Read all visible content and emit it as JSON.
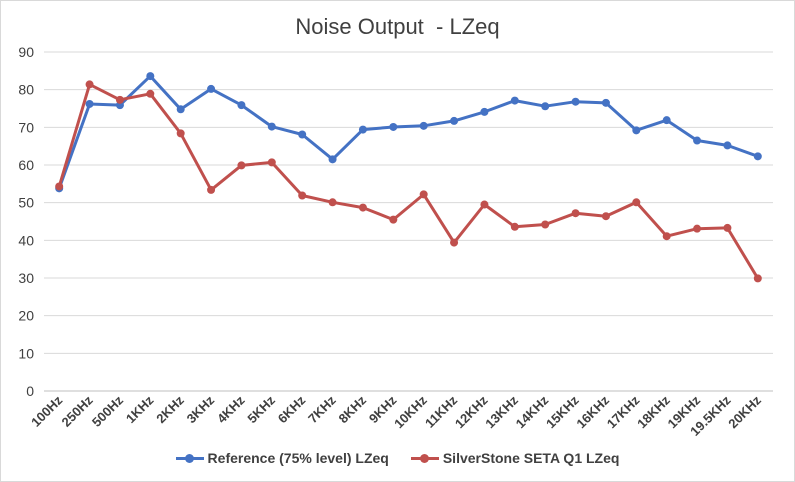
{
  "chart_data": {
    "type": "line",
    "title": "Noise Output  - LZeq",
    "xlabel": "",
    "ylabel": "",
    "ylim": [
      0,
      90
    ],
    "yticks": [
      0,
      10,
      20,
      30,
      40,
      50,
      60,
      70,
      80,
      90
    ],
    "grid": true,
    "legend_position": "bottom",
    "categories": [
      "100Hz",
      "250Hz",
      "500Hz",
      "1KHz",
      "2KHz",
      "3KHz",
      "4KHz",
      "5KHz",
      "6KHz",
      "7KHz",
      "8KHz",
      "9KHz",
      "10KHz",
      "11KHz",
      "12KHz",
      "13KHz",
      "14KHz",
      "15KHz",
      "16KHz",
      "17KHz",
      "18KHz",
      "19KHz",
      "19.5KHz",
      "20KHz"
    ],
    "series": [
      {
        "name": "Reference (75% level) LZeq",
        "color": "#4472C4",
        "values": [
          53.8,
          76.2,
          75.9,
          83.6,
          74.8,
          80.2,
          75.9,
          70.2,
          68.1,
          61.5,
          69.4,
          70.1,
          70.4,
          71.7,
          74.1,
          77.1,
          75.6,
          76.8,
          76.5,
          69.2,
          71.9,
          66.5,
          65.2,
          62.3
        ]
      },
      {
        "name": "SilverStone SETA Q1 LZeq",
        "color": "#C0504D",
        "values": [
          54.3,
          81.4,
          77.3,
          78.9,
          68.4,
          53.4,
          59.9,
          60.7,
          51.9,
          50.1,
          48.7,
          45.5,
          52.2,
          39.4,
          49.5,
          43.6,
          44.2,
          47.2,
          46.4,
          50.1,
          41.1,
          43.1,
          43.3,
          29.9
        ]
      }
    ]
  }
}
